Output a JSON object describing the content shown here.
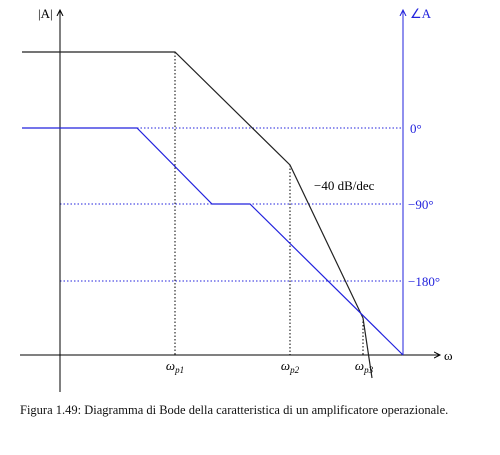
{
  "diagram": {
    "magnitude_axis_label": "|A|",
    "phase_axis_label": "∠A",
    "frequency_axis_label": "ω",
    "poles": [
      {
        "symbol": "ω",
        "subscript": "p1"
      },
      {
        "symbol": "ω",
        "subscript": "p2"
      },
      {
        "symbol": "ω",
        "subscript": "p3"
      }
    ],
    "phase_levels": [
      "0°",
      "−90°",
      "−180°"
    ],
    "slope_annotation": "−40 dB/dec"
  },
  "caption": "Figura 1.49: Diagramma di Bode della caratteristica di un amplificatore operazionale."
}
